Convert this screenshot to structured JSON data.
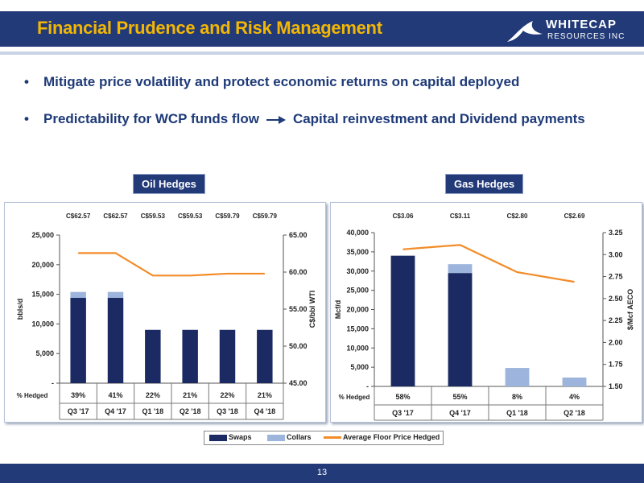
{
  "header": {
    "title": "Financial Prudence and Risk Management",
    "logo_line1": "WHITECAP",
    "logo_line2": "RESOURCES INC"
  },
  "bullets": [
    "Mitigate price volatility and protect economic returns on capital deployed",
    "Predictability for WCP funds flow",
    "Capital reinvestment and Dividend payments"
  ],
  "colors": {
    "navy": "#1b2a63",
    "collars": "#9db5dc",
    "line": "#f28c28",
    "title": "#f2b705"
  },
  "legend": {
    "swaps": "Swaps",
    "collars": "Collars",
    "avg": "Average Floor Price Hedged"
  },
  "footer": {
    "page_number": "13"
  },
  "chart_data": [
    {
      "type": "bar",
      "title": "Oil Hedges",
      "categories": [
        "Q3 '17",
        "Q4 '17",
        "Q1 '18",
        "Q2 '18",
        "Q3 '18",
        "Q4 '18"
      ],
      "series": [
        {
          "name": "Swaps",
          "values": [
            14400,
            14400,
            9000,
            9000,
            9000,
            9000
          ]
        },
        {
          "name": "Collars",
          "values": [
            1000,
            1000,
            0,
            0,
            0,
            0
          ]
        },
        {
          "name": "Average Floor Price Hedged",
          "axis": "right",
          "values": [
            62.57,
            62.57,
            59.53,
            59.53,
            59.79,
            59.79
          ]
        }
      ],
      "price_labels": [
        "C$62.57",
        "C$62.57",
        "C$59.53",
        "C$59.53",
        "C$59.79",
        "C$59.79"
      ],
      "pct_hedged_label": "% Hedged",
      "pct_hedged": [
        "39%",
        "41%",
        "22%",
        "21%",
        "22%",
        "21%"
      ],
      "ylabel": "bbls/d",
      "y2label": "C$/bbl WTI",
      "ylim": [
        0,
        25000
      ],
      "y2lim": [
        45,
        65
      ],
      "yticks": [
        "-",
        "5,000",
        "10,000",
        "15,000",
        "20,000",
        "25,000"
      ],
      "y2ticks": [
        "45.00",
        "50.00",
        "55.00",
        "60.00",
        "65.00"
      ]
    },
    {
      "type": "bar",
      "title": "Gas Hedges",
      "categories": [
        "Q3 '17",
        "Q4 '17",
        "Q1 '18",
        "Q2 '18"
      ],
      "series": [
        {
          "name": "Swaps",
          "values": [
            34000,
            29500,
            0,
            0
          ]
        },
        {
          "name": "Collars",
          "values": [
            0,
            2300,
            4800,
            2300
          ]
        },
        {
          "name": "Average Floor Price Hedged",
          "axis": "right",
          "values": [
            3.06,
            3.11,
            2.8,
            2.69
          ]
        }
      ],
      "price_labels": [
        "C$3.06",
        "C$3.11",
        "C$2.80",
        "C$2.69"
      ],
      "pct_hedged_label": "% Hedged",
      "pct_hedged": [
        "58%",
        "55%",
        "8%",
        "4%"
      ],
      "ylabel": "Mcf/d",
      "y2label": "$/Mcf AECO",
      "ylim": [
        0,
        40000
      ],
      "y2lim": [
        1.5,
        3.25
      ],
      "yticks": [
        "-",
        "5,000",
        "10,000",
        "15,000",
        "20,000",
        "25,000",
        "30,000",
        "35,000",
        "40,000"
      ],
      "y2ticks": [
        "1.50",
        "1.75",
        "2.00",
        "2.25",
        "2.50",
        "2.75",
        "3.00",
        "3.25"
      ]
    }
  ]
}
